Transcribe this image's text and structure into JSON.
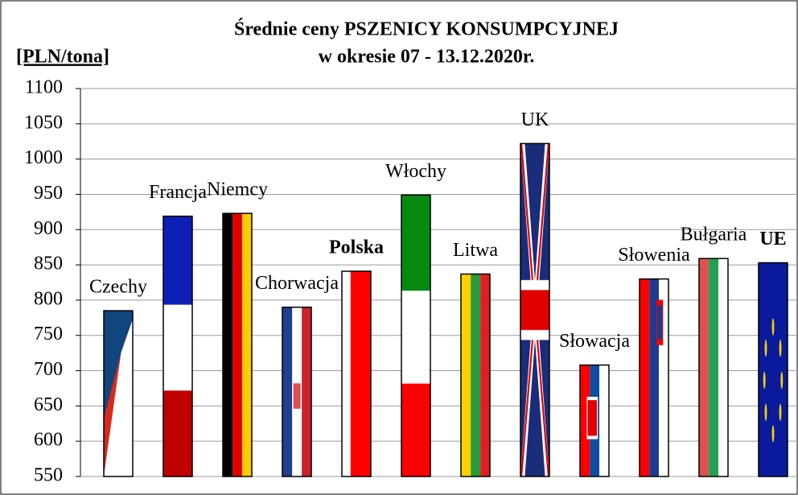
{
  "chart_data": {
    "type": "bar",
    "title": "Średnie ceny PSZENICY  KONSUMPCYJNEJ",
    "subtitle": "w okresie 07 - 13.12.2020r.",
    "y_label": "[PLN/tona]",
    "categories": [
      "Czechy",
      "Francja",
      "Niemcy",
      "Chorwacja",
      "Polska",
      "Włochy",
      "Litwa",
      "UK",
      "Słowacja",
      "Słowenia",
      "Bułgaria",
      "UE"
    ],
    "values": [
      785,
      919,
      923,
      790,
      841,
      949,
      837,
      1022,
      708,
      830,
      859,
      853
    ],
    "ylim": [
      550,
      1100
    ],
    "yticks": [
      550,
      600,
      650,
      700,
      750,
      800,
      850,
      900,
      950,
      1000,
      1050,
      1100
    ],
    "grid": true
  }
}
